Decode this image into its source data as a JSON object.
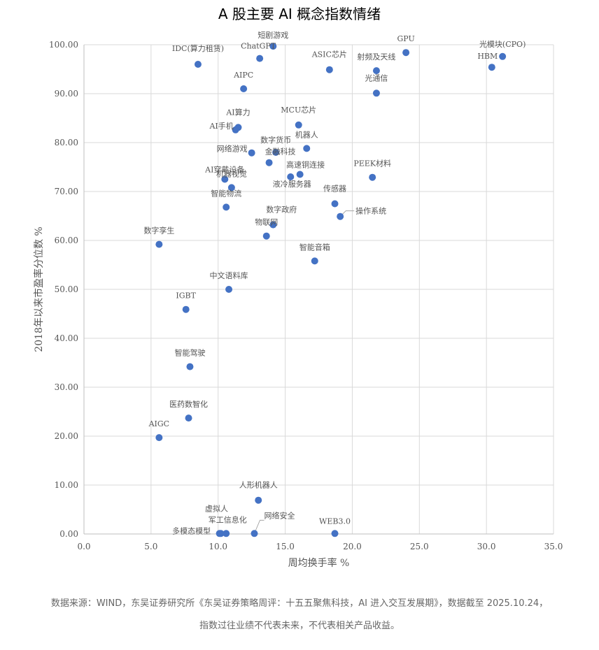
{
  "chart_data": {
    "type": "scatter",
    "title": "A 股主要 AI 概念指数情绪",
    "xlabel": "周均换手率 %",
    "ylabel": "2018年以来市盈率分位数 %",
    "xlim": [
      0,
      35
    ],
    "ylim": [
      0,
      100
    ],
    "xticks": [
      "0.0",
      "5.0",
      "10.0",
      "15.0",
      "20.0",
      "25.0",
      "30.0",
      "35.0"
    ],
    "yticks": [
      "0.00",
      "10.00",
      "20.00",
      "30.00",
      "40.00",
      "50.00",
      "60.00",
      "70.00",
      "80.00",
      "90.00",
      "100.00"
    ],
    "grid": true,
    "color": "#4472c4",
    "points": [
      {
        "label": "短剧游戏",
        "x": 14.1,
        "y": 99.7
      },
      {
        "label": "ChatGPT",
        "x": 13.1,
        "y": 97.2
      },
      {
        "label": "IDC(算力租赁)",
        "x": 8.5,
        "y": 96.0
      },
      {
        "label": "GPU",
        "x": 24.0,
        "y": 98.4
      },
      {
        "label": "光模块(CPO)",
        "x": 31.2,
        "y": 97.6
      },
      {
        "label": "HBM",
        "x": 30.4,
        "y": 95.4
      },
      {
        "label": "ASIC芯片",
        "x": 18.3,
        "y": 94.9
      },
      {
        "label": "射频及天线",
        "x": 21.8,
        "y": 94.7
      },
      {
        "label": "光通信",
        "x": 21.8,
        "y": 90.1
      },
      {
        "label": "AIPC",
        "x": 11.9,
        "y": 91.0
      },
      {
        "label": "AI算力",
        "x": 11.5,
        "y": 83.1
      },
      {
        "label": "AI手机",
        "x": 11.3,
        "y": 82.6
      },
      {
        "label": "MCU芯片",
        "x": 16.0,
        "y": 83.6
      },
      {
        "label": "机器人",
        "x": 16.6,
        "y": 78.8
      },
      {
        "label": "数字货币",
        "x": 14.3,
        "y": 78.0
      },
      {
        "label": "网络游戏",
        "x": 12.5,
        "y": 77.9
      },
      {
        "label": "金融科技",
        "x": 13.8,
        "y": 75.9
      },
      {
        "label": "高速铜连接",
        "x": 16.1,
        "y": 73.5
      },
      {
        "label": "液冷服务器",
        "x": 15.4,
        "y": 73.0
      },
      {
        "label": "PEEK材料",
        "x": 21.5,
        "y": 72.9
      },
      {
        "label": "AI穿戴设备",
        "x": 10.5,
        "y": 72.5
      },
      {
        "label": "机器视觉",
        "x": 11.0,
        "y": 70.8
      },
      {
        "label": "智能物流",
        "x": 10.6,
        "y": 66.8
      },
      {
        "label": "传感器",
        "x": 18.7,
        "y": 67.5
      },
      {
        "label": "操作系统",
        "x": 19.1,
        "y": 64.9
      },
      {
        "label": "数字政府",
        "x": 14.1,
        "y": 63.2
      },
      {
        "label": "物联网",
        "x": 13.6,
        "y": 60.9
      },
      {
        "label": "数字孪生",
        "x": 5.6,
        "y": 59.2
      },
      {
        "label": "智能音箱",
        "x": 17.2,
        "y": 55.8
      },
      {
        "label": "中文语料库",
        "x": 10.8,
        "y": 50.0
      },
      {
        "label": "IGBT",
        "x": 7.6,
        "y": 45.9
      },
      {
        "label": "智能驾驶",
        "x": 7.9,
        "y": 34.2
      },
      {
        "label": "医药数智化",
        "x": 7.8,
        "y": 23.7
      },
      {
        "label": "AIGC",
        "x": 5.6,
        "y": 19.7
      },
      {
        "label": "人形机器人",
        "x": 13.0,
        "y": 6.9
      },
      {
        "label": "虚拟人",
        "x": 10.2,
        "y": 0.1
      },
      {
        "label": "军工信息化",
        "x": 10.6,
        "y": 0.1
      },
      {
        "label": "多模态模型",
        "x": 10.1,
        "y": 0.1
      },
      {
        "label": "网络安全",
        "x": 12.7,
        "y": 0.1
      },
      {
        "label": "WEB3.0",
        "x": 18.7,
        "y": 0.1
      }
    ]
  },
  "footnote": {
    "line1": "数据来源：WIND，东吴证券研究所《东吴证券策略周评：十五五聚焦科技，AI 进入交互发展期》，数据截至 2025.10.24，",
    "line2": "指数过往业绩不代表未来，不代表相关产品收益。"
  }
}
